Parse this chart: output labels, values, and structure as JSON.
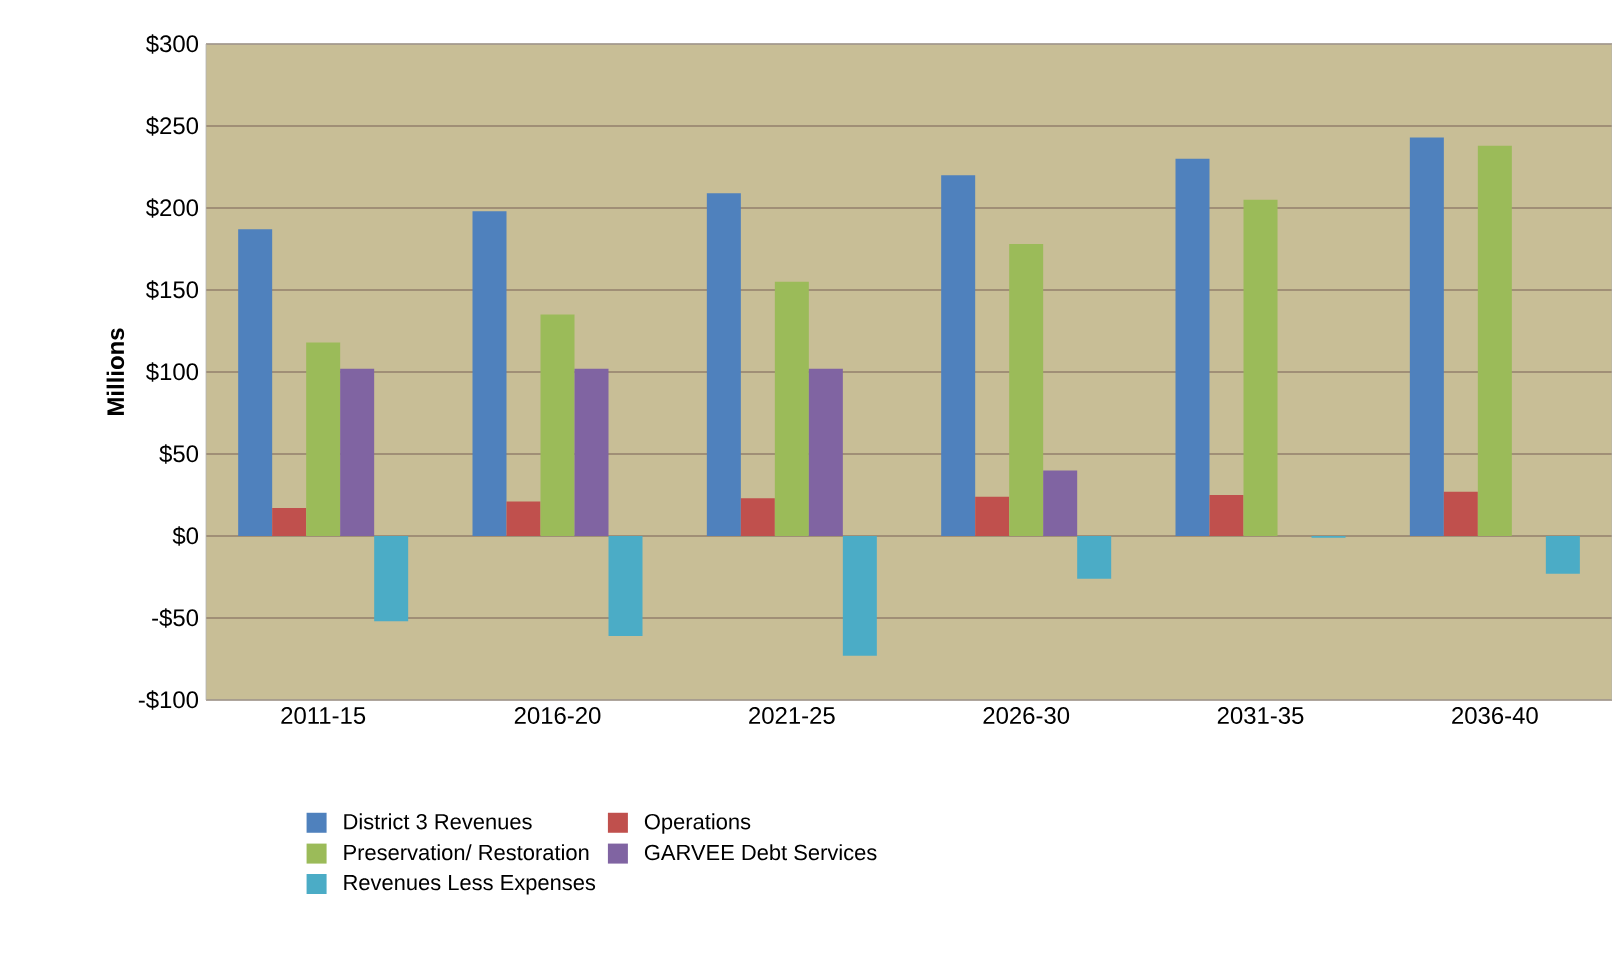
{
  "chart_data": {
    "type": "bar",
    "ylabel": "Millions",
    "categories": [
      "2011-15",
      "2016-20",
      "2021-25",
      "2026-30",
      "2031-35",
      "2036-40"
    ],
    "series": [
      {
        "name": "District 3 Revenues",
        "color": "#4f81bd",
        "values": [
          187,
          198,
          209,
          220,
          230,
          243
        ]
      },
      {
        "name": "Operations",
        "color": "#c0504d",
        "values": [
          17,
          21,
          23,
          24,
          25,
          27
        ]
      },
      {
        "name": "Preservation/ Restoration",
        "color": "#9bbb59",
        "values": [
          118,
          135,
          155,
          178,
          205,
          238
        ]
      },
      {
        "name": "GARVEE Debt Services",
        "color": "#8064a2",
        "values": [
          102,
          102,
          102,
          40,
          0,
          0
        ]
      },
      {
        "name": "Revenues Less Expenses",
        "color": "#4bacc6",
        "values": [
          -52,
          -61,
          -73,
          -26,
          -1,
          -23
        ]
      }
    ],
    "ylim": [
      -100,
      300
    ],
    "yticks": [
      {
        "value": -100,
        "label": "-$100"
      },
      {
        "value": -50,
        "label": "-$50"
      },
      {
        "value": 0,
        "label": "$0"
      },
      {
        "value": 50,
        "label": "$50"
      },
      {
        "value": 100,
        "label": "$100"
      },
      {
        "value": 150,
        "label": "$150"
      },
      {
        "value": 200,
        "label": "$200"
      },
      {
        "value": 250,
        "label": "$250"
      },
      {
        "value": 300,
        "label": "$300"
      }
    ],
    "grid": "y",
    "legend": "bottom"
  }
}
